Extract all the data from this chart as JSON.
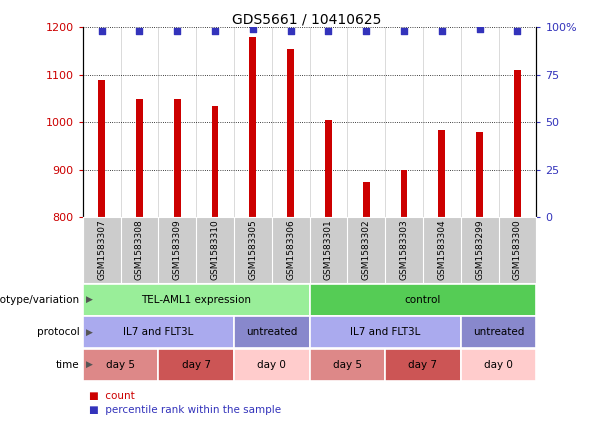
{
  "title": "GDS5661 / 10410625",
  "samples": [
    "GSM1583307",
    "GSM1583308",
    "GSM1583309",
    "GSM1583310",
    "GSM1583305",
    "GSM1583306",
    "GSM1583301",
    "GSM1583302",
    "GSM1583303",
    "GSM1583304",
    "GSM1583299",
    "GSM1583300"
  ],
  "counts": [
    1090,
    1050,
    1050,
    1035,
    1180,
    1155,
    1005,
    875,
    900,
    985,
    980,
    1110
  ],
  "percentile_ranks": [
    98,
    98,
    98,
    98,
    99,
    98,
    98,
    98,
    98,
    98,
    99,
    98
  ],
  "ylim_left": [
    800,
    1200
  ],
  "ylim_right": [
    0,
    100
  ],
  "yticks_left": [
    800,
    900,
    1000,
    1100,
    1200
  ],
  "yticks_right": [
    0,
    25,
    50,
    75,
    100
  ],
  "bar_color": "#cc0000",
  "dot_color": "#3333bb",
  "left_tick_color": "#cc0000",
  "right_tick_color": "#3333bb",
  "sample_bg_color": "#cccccc",
  "col_sep_color": "#ffffff",
  "genotype_groups": [
    {
      "text": "TEL-AML1 expression",
      "start": 0,
      "end": 6,
      "color": "#99ee99"
    },
    {
      "text": "control",
      "start": 6,
      "end": 12,
      "color": "#55cc55"
    }
  ],
  "protocol_groups": [
    {
      "text": "IL7 and FLT3L",
      "start": 0,
      "end": 4,
      "color": "#aaaaee"
    },
    {
      "text": "untreated",
      "start": 4,
      "end": 6,
      "color": "#8888cc"
    },
    {
      "text": "IL7 and FLT3L",
      "start": 6,
      "end": 10,
      "color": "#aaaaee"
    },
    {
      "text": "untreated",
      "start": 10,
      "end": 12,
      "color": "#8888cc"
    }
  ],
  "time_groups": [
    {
      "text": "day 5",
      "start": 0,
      "end": 2,
      "color": "#dd8888"
    },
    {
      "text": "day 7",
      "start": 2,
      "end": 4,
      "color": "#cc5555"
    },
    {
      "text": "day 0",
      "start": 4,
      "end": 6,
      "color": "#ffcccc"
    },
    {
      "text": "day 5",
      "start": 6,
      "end": 8,
      "color": "#dd8888"
    },
    {
      "text": "day 7",
      "start": 8,
      "end": 10,
      "color": "#cc5555"
    },
    {
      "text": "day 0",
      "start": 10,
      "end": 12,
      "color": "#ffcccc"
    }
  ],
  "row_labels": [
    "genotype/variation",
    "protocol",
    "time"
  ],
  "legend": [
    {
      "label": "count",
      "color": "#cc0000"
    },
    {
      "label": "percentile rank within the sample",
      "color": "#3333bb"
    }
  ]
}
